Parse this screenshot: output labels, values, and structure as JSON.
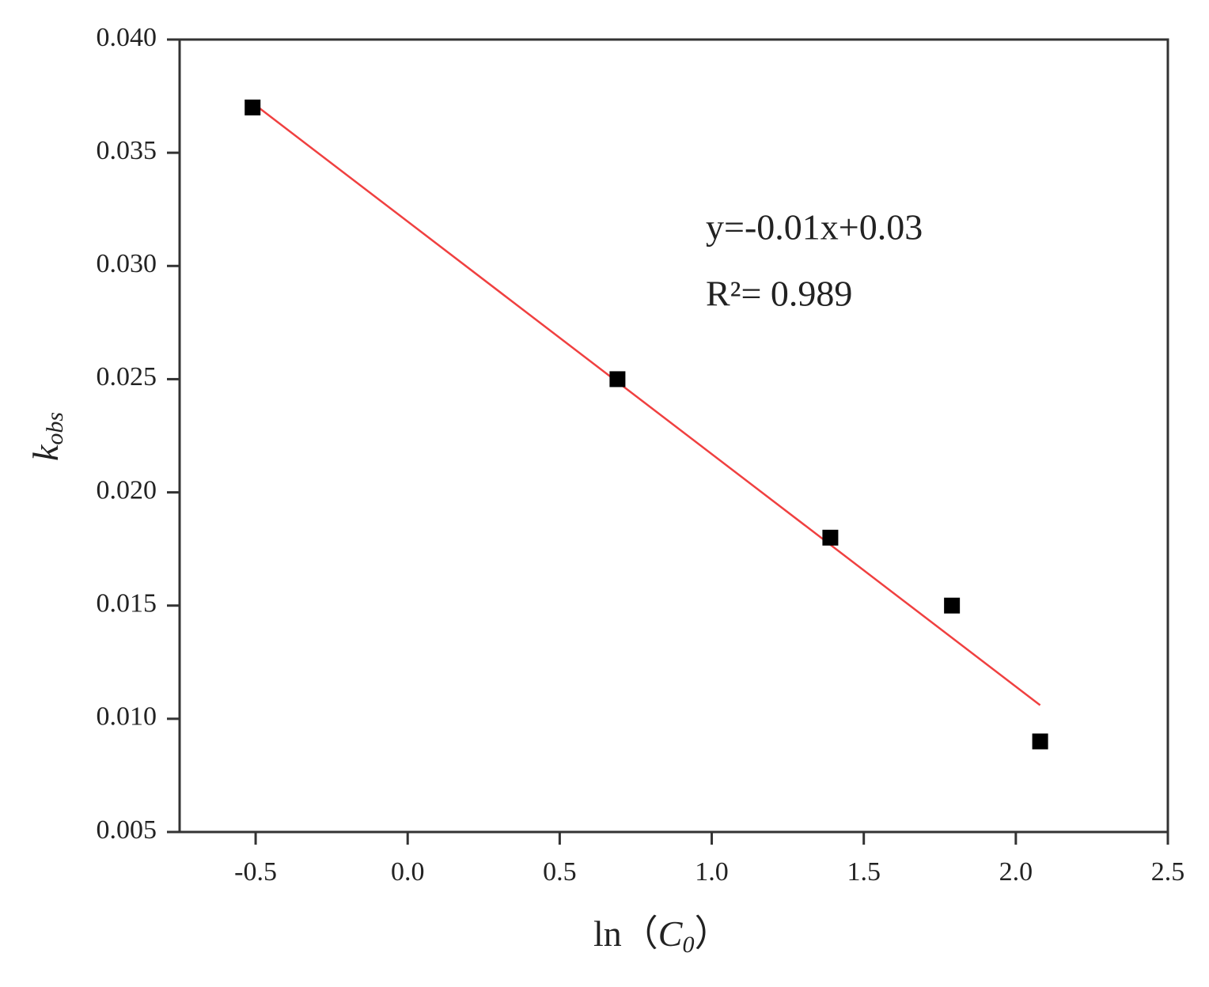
{
  "chart_data": {
    "type": "scatter",
    "x_label": [
      "ln（",
      "C",
      "0",
      "）"
    ],
    "y_label": [
      "k",
      "obs"
    ],
    "annotations": [
      "y=-0.01x+0.03",
      "R²= 0.989"
    ],
    "x": [
      -0.51,
      0.69,
      1.39,
      1.79,
      2.08
    ],
    "values": [
      0.037,
      0.025,
      0.018,
      0.015,
      0.009
    ],
    "color": "#000000",
    "fit": {
      "x": [
        -0.51,
        2.08
      ],
      "values": [
        0.0372,
        0.0106
      ],
      "color": "#f04040"
    },
    "xlim": [
      -0.75,
      2.5
    ],
    "xticks": [
      {
        "value": -0.5,
        "label": "-0.5"
      },
      {
        "value": 0,
        "label": "0.0"
      },
      0.5,
      {
        "value": 1,
        "label": "1.0"
      },
      1.5,
      {
        "value": 2,
        "label": "2.0"
      },
      2.5
    ],
    "ylim": [
      0.005,
      0.04
    ],
    "yticks": [
      0.005,
      {
        "value": 0.01,
        "label": "0.010"
      },
      0.015,
      {
        "value": 0.02,
        "label": "0.020"
      },
      0.025,
      {
        "value": 0.03,
        "label": "0.030"
      },
      0.035,
      {
        "value": 0.04,
        "label": "0.040"
      }
    ],
    "grid": false
  }
}
